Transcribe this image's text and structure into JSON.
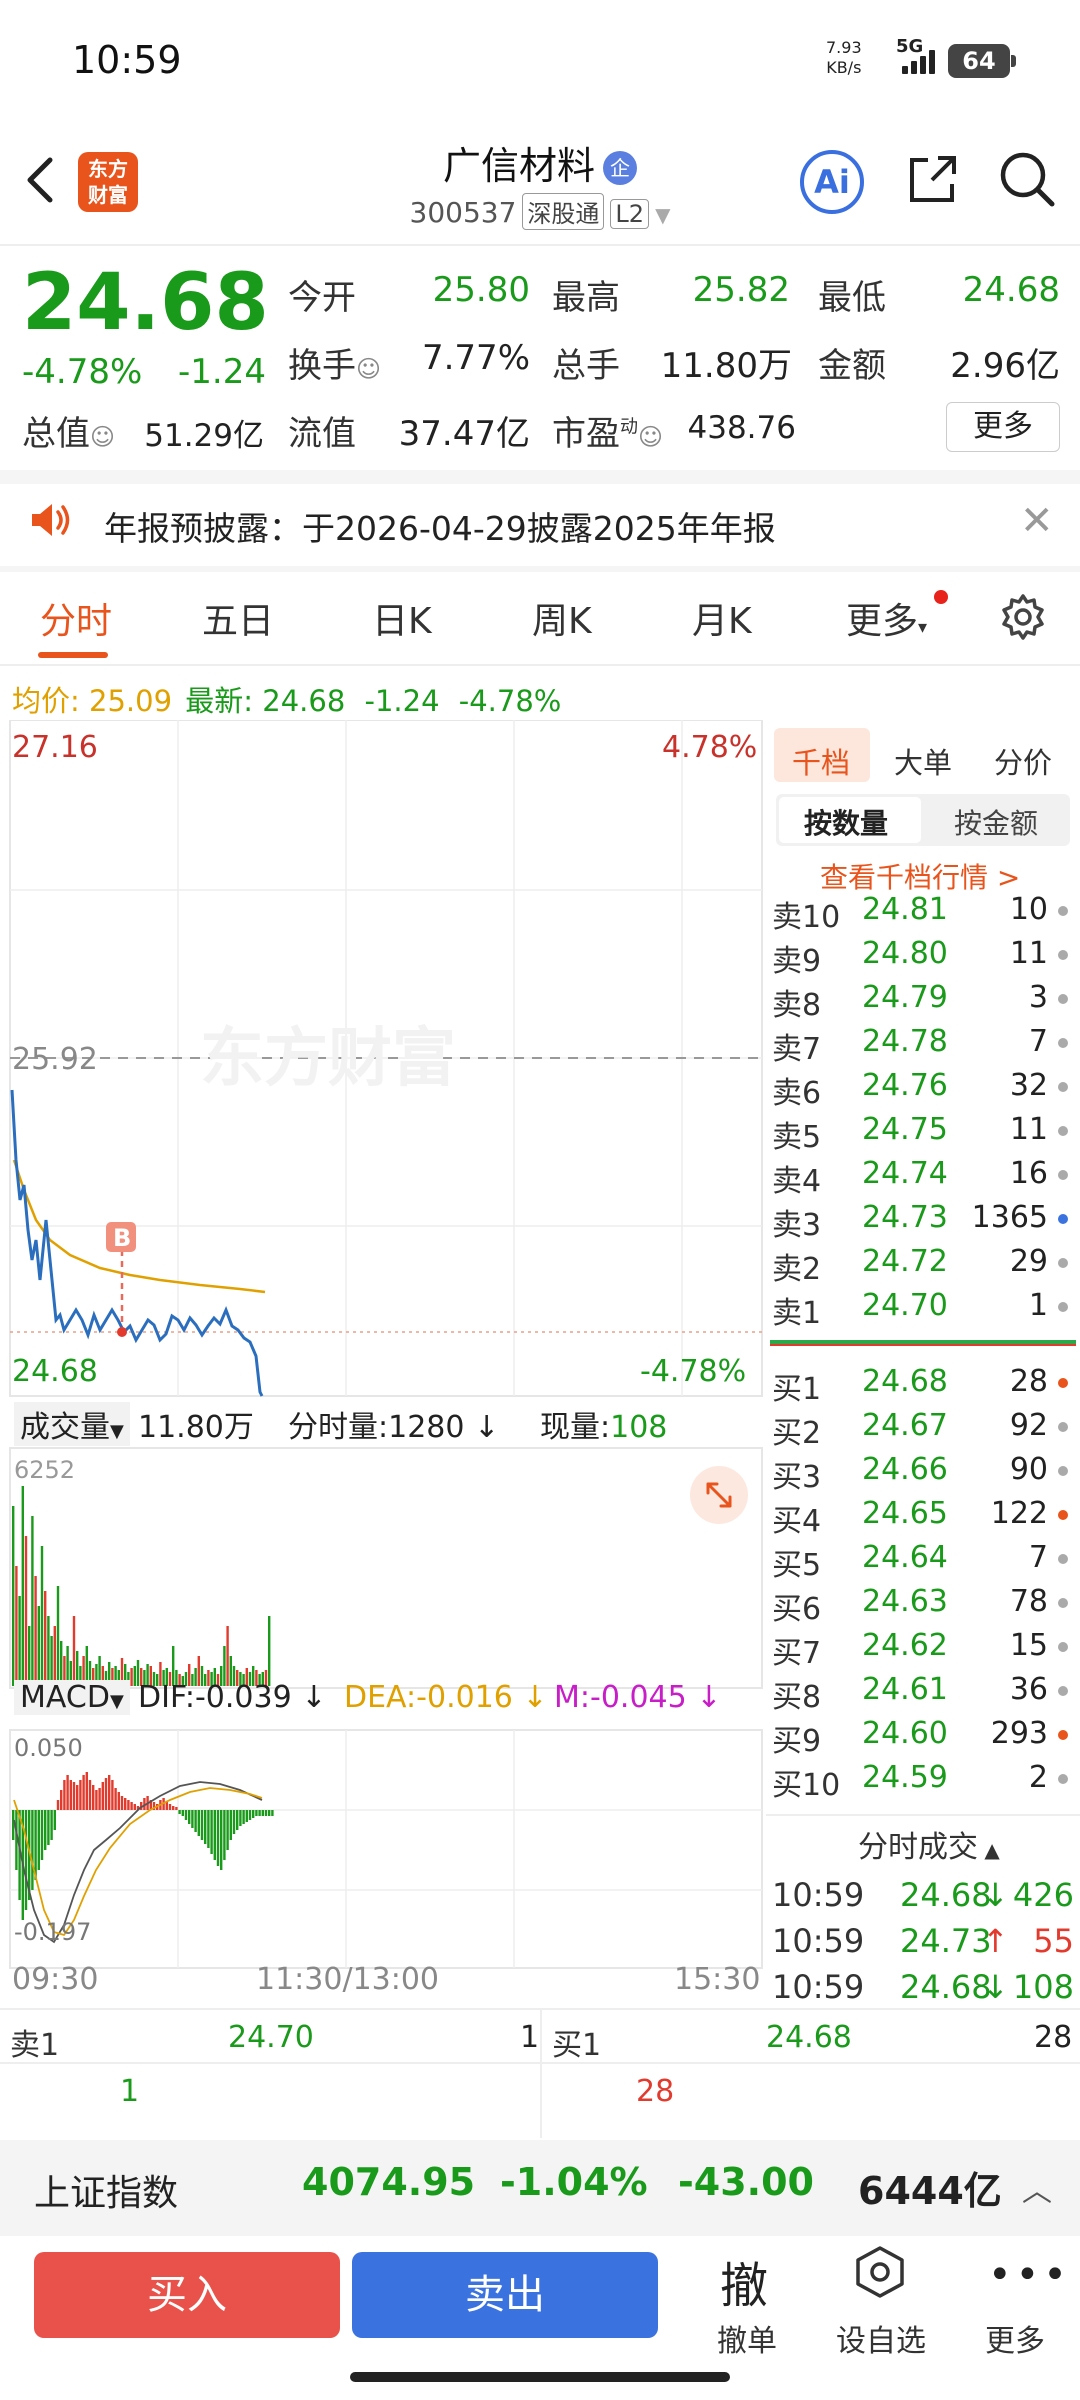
{
  "status": {
    "time": "10:59",
    "speed": "7.93",
    "speed_unit": "KB/s",
    "network": "5G",
    "battery": "64"
  },
  "header": {
    "logo_line1": "东方",
    "logo_line2": "财富",
    "name": "广信材料",
    "enterprise_badge": "企",
    "code": "300537",
    "tag1": "深股通",
    "tag2": "L2",
    "ai_label": "Ai"
  },
  "quote": {
    "price": "24.68",
    "pct": "-4.78%",
    "change": "-1.24",
    "open_label": "今开",
    "open": "25.80",
    "high_label": "最高",
    "high": "25.82",
    "low_label": "最低",
    "low": "24.68",
    "turnover_label": "换手",
    "turnover": "7.77%",
    "volume_label": "总手",
    "volume": "11.80万",
    "amount_label": "金额",
    "amount": "2.96亿",
    "mcap_label": "总值",
    "mcap": "51.29亿",
    "float_label": "流值",
    "float": "37.47亿",
    "pe_label": "市盈",
    "pe_sup": "动",
    "pe": "438.76",
    "more_btn": "更多"
  },
  "notice": {
    "text": "年报预披露：于2026-04-29披露2025年年报"
  },
  "tabs": [
    "分时",
    "五日",
    "日K",
    "周K",
    "月K",
    "更多"
  ],
  "avg": {
    "label": "均价:",
    "value": "25.09",
    "latest_label": "最新:",
    "latest": "24.68",
    "chg": "-1.24",
    "pct": "-4.78%"
  },
  "chart": {
    "top_price": "27.16",
    "top_pct": "4.78%",
    "mid_price": "25.92",
    "bottom_price": "24.68",
    "bottom_pct": "-4.78%",
    "watermark": "东方财富",
    "marker": "B",
    "vol_label": "成交量",
    "vol_total": "11.80万",
    "vol_min_label": "分时量:1280",
    "vol_now_label": "现量:",
    "vol_now": "108",
    "vol_max": "6252",
    "macd_label": "MACD",
    "dif": "DIF:-0.039",
    "dea": "DEA:-0.016",
    "m": "M:-0.045",
    "macd_top": "0.050",
    "macd_bottom": "-0.197",
    "t_start": "09:30",
    "t_mid": "11:30/13:00",
    "t_end": "15:30"
  },
  "orderbook": {
    "tabs": [
      "千档",
      "大单",
      "分价"
    ],
    "seg": [
      "按数量",
      "按金额"
    ],
    "link": "查看千档行情 >",
    "asks": [
      {
        "label": "卖10",
        "price": "24.81",
        "vol": "10"
      },
      {
        "label": "卖9",
        "price": "24.80",
        "vol": "11"
      },
      {
        "label": "卖8",
        "price": "24.79",
        "vol": "3"
      },
      {
        "label": "卖7",
        "price": "24.78",
        "vol": "7"
      },
      {
        "label": "卖6",
        "price": "24.76",
        "vol": "32"
      },
      {
        "label": "卖5",
        "price": "24.75",
        "vol": "11"
      },
      {
        "label": "卖4",
        "price": "24.74",
        "vol": "16"
      },
      {
        "label": "卖3",
        "price": "24.73",
        "vol": "1365"
      },
      {
        "label": "卖2",
        "price": "24.72",
        "vol": "29"
      },
      {
        "label": "卖1",
        "price": "24.70",
        "vol": "1"
      }
    ],
    "bids": [
      {
        "label": "买1",
        "price": "24.68",
        "vol": "28"
      },
      {
        "label": "买2",
        "price": "24.67",
        "vol": "92"
      },
      {
        "label": "买3",
        "price": "24.66",
        "vol": "90"
      },
      {
        "label": "买4",
        "price": "24.65",
        "vol": "122"
      },
      {
        "label": "买5",
        "price": "24.64",
        "vol": "7"
      },
      {
        "label": "买6",
        "price": "24.63",
        "vol": "78"
      },
      {
        "label": "买7",
        "price": "24.62",
        "vol": "15"
      },
      {
        "label": "买8",
        "price": "24.61",
        "vol": "36"
      },
      {
        "label": "买9",
        "price": "24.60",
        "vol": "293"
      },
      {
        "label": "买10",
        "price": "24.59",
        "vol": "2"
      }
    ],
    "trade_title": "分时成交",
    "trades": [
      {
        "time": "10:59",
        "price": "24.68",
        "dir": "↓",
        "vol": "426"
      },
      {
        "time": "10:59",
        "price": "24.73",
        "dir": "↑",
        "vol": "55"
      },
      {
        "time": "10:59",
        "price": "24.68",
        "dir": "↓",
        "vol": "108"
      }
    ]
  },
  "bottom_quote": {
    "ask_label": "卖1",
    "ask_price": "24.70",
    "ask_vol": "1",
    "ask_cnt": "1",
    "bid_label": "买1",
    "bid_price": "24.68",
    "bid_vol": "28",
    "bid_cnt": "28"
  },
  "index": {
    "name": "上证指数",
    "value": "4074.95",
    "pct": "-1.04%",
    "chg": "-43.00",
    "amount": "6444亿"
  },
  "actions": {
    "buy": "买入",
    "sell": "卖出",
    "cancel_icon": "撤",
    "cancel": "撤单",
    "fav": "设自选",
    "more": "更多"
  },
  "colors": {
    "up": "#e23b2e",
    "down": "#1a9a1a",
    "accent": "#e8541c",
    "avg": "#e0a100",
    "blue": "#3a72e0"
  }
}
